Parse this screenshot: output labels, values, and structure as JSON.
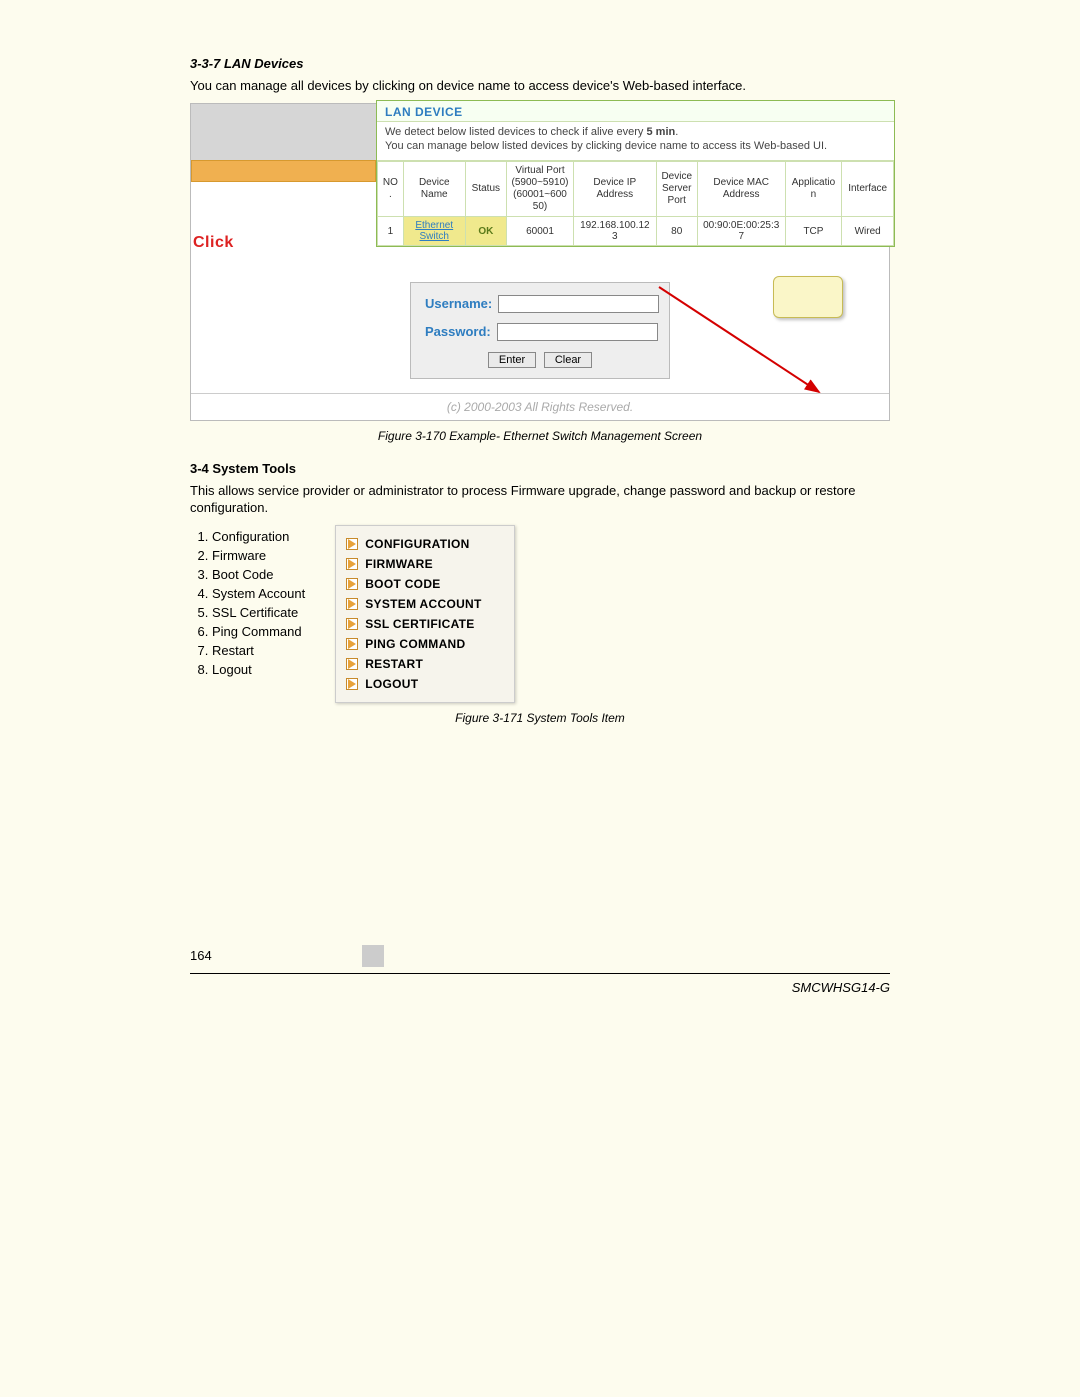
{
  "section1": {
    "heading": "3-3-7 LAN Devices",
    "intro": "You can manage all devices by clicking on device name to access device's Web-based interface."
  },
  "lan_device": {
    "title": "LAN DEVICE",
    "desc_line1": "We detect below listed devices to check if alive every ",
    "desc_bold": "5 min",
    "desc_line2": "You can manage below listed devices by clicking device name to access its Web-based UI.",
    "columns": [
      "NO.",
      "Device Name",
      "Status",
      "Virtual Port\n(5900~5910)\n(60001~60050)",
      "Device IP\nAddress",
      "Device\nServer\nPort",
      "Device MAC\nAddress",
      "Application",
      "Interface"
    ],
    "col_widths": [
      "5%",
      "12%",
      "8%",
      "13%",
      "16%",
      "8%",
      "17%",
      "11%",
      "10%"
    ],
    "row": {
      "no": "1",
      "name": "Ethernet Switch",
      "status": "OK",
      "vport": "60001",
      "ip": "192.168.100.123",
      "sport": "80",
      "mac": "00:90:0E:00:25:37",
      "app": "TCP",
      "iface": "Wired"
    }
  },
  "click_label": "Click",
  "login": {
    "user_label": "Username:",
    "pass_label": "Password:",
    "enter": "Enter",
    "clear": "Clear"
  },
  "copyright": "(c) 2000-2003 All Rights Reserved.",
  "fig170": "Figure 3-170 Example- Ethernet Switch Management Screen",
  "section2": {
    "heading": "3-4 System Tools",
    "intro": "This allows service provider or administrator to process Firmware upgrade, change password and backup or restore configuration.",
    "items": [
      "Configuration",
      "Firmware",
      "Boot Code",
      "System Account",
      "SSL Certificate",
      "Ping Command",
      "Restart",
      "Logout"
    ]
  },
  "tools_menu": [
    "CONFIGURATION",
    "FIRMWARE",
    "BOOT CODE",
    "SYSTEM ACCOUNT",
    "SSL CERTIFICATE",
    "PING COMMAND",
    "RESTART",
    "LOGOUT"
  ],
  "fig171": "Figure 3-171 System Tools Item",
  "page_number": "164",
  "model": "SMCWHSG14-G",
  "arrow": {
    "color": "#d40000",
    "stroke_width": 2
  },
  "colors": {
    "page_bg": "#fdfcee",
    "panel_border": "#8dbb54",
    "cell_border": "#cde0b0",
    "link": "#2e7dc0",
    "ok_bg": "#f0e98d",
    "orange_bar": "#f0b050",
    "click": "#d22",
    "callout_bg": "#faf6c8",
    "callout_border": "#c7bb55",
    "tools_icon": "#e8a23a"
  }
}
